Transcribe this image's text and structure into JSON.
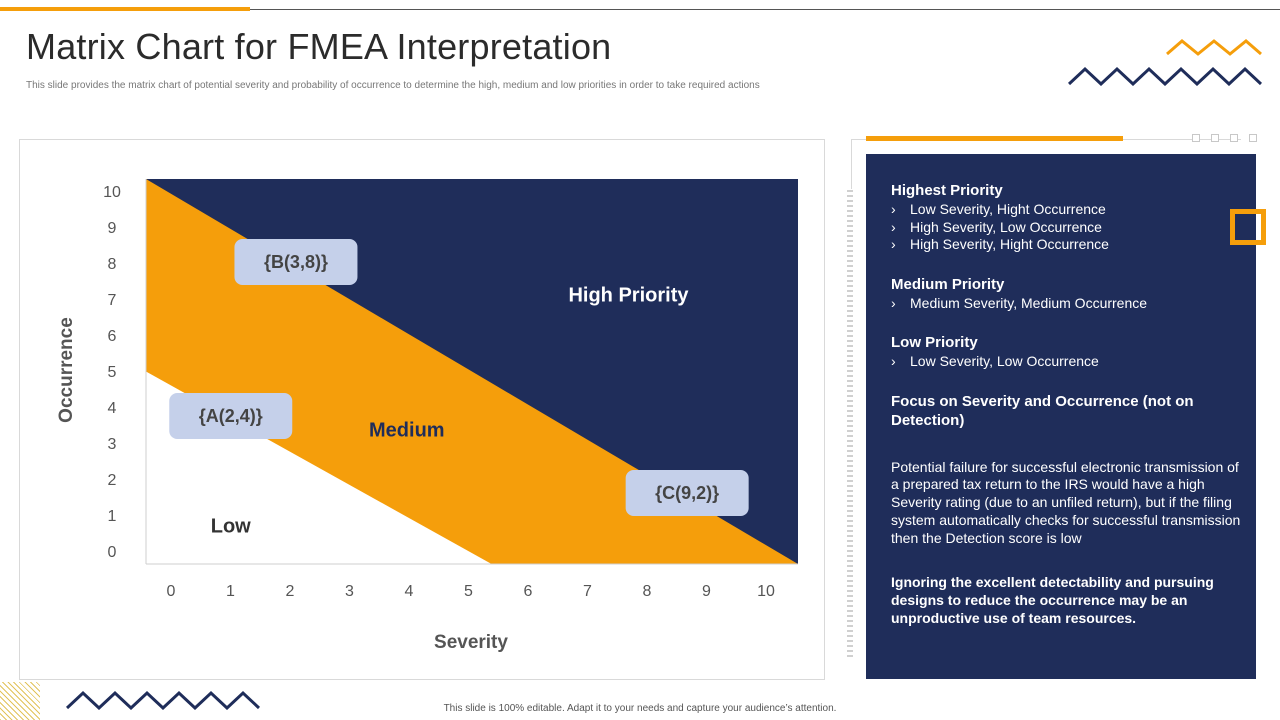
{
  "slide": {
    "title": "Matrix Chart for FMEA Interpretation",
    "subtitle": "This slide provides the matrix chart of potential severity and probability of occurrence to determine the high, medium and low priorities in order to take required actions",
    "footer": "This slide is 100% editable. Adapt it to your needs and capture your audience’s attention."
  },
  "colors": {
    "navy": "#1f2d5a",
    "orange": "#f59e0b",
    "point_box": "#c5d0ea",
    "zigzag_navy": "#1f2d5a",
    "zigzag_orange": "#f59e0b"
  },
  "chart_data": {
    "type": "scatter",
    "title": "",
    "xlabel": "Severity",
    "ylabel": "Occurrence",
    "xlim": [
      0,
      10
    ],
    "ylim": [
      0,
      10
    ],
    "x_ticks": [
      "0",
      "1",
      "2",
      "3",
      "4",
      "5",
      "6",
      "7",
      "8",
      "9",
      "10"
    ],
    "y_ticks": [
      "0",
      "1",
      "2",
      "3",
      "4",
      "5",
      "6",
      "7",
      "8",
      "9",
      "10"
    ],
    "grid": false,
    "regions": [
      {
        "name": "High Priority",
        "color": "#1f2d5a",
        "label_at": [
          7.4,
          7
        ]
      },
      {
        "name": "Medium",
        "color": "#f59e0b",
        "label_at": [
          4,
          3.5
        ]
      },
      {
        "name": "Low",
        "color": "#ffffff",
        "label_at": [
          1.3,
          1
        ]
      }
    ],
    "boundaries": [
      {
        "name": "low-medium",
        "from": [
          0,
          5
        ],
        "to": [
          5.3,
          0
        ]
      },
      {
        "name": "medium-high",
        "from": [
          0,
          10
        ],
        "to": [
          10,
          0
        ]
      }
    ],
    "points": [
      {
        "label": "{B(3,8)}",
        "x": 3,
        "y": 8
      },
      {
        "label": "{A(2,4)}",
        "x": 2,
        "y": 4
      },
      {
        "label": "{C(9,2)}",
        "x": 9,
        "y": 2
      }
    ]
  },
  "side": {
    "sections": [
      {
        "heading": "Highest Priority",
        "items": [
          "Low Severity, Hight Occurrence",
          "High Severity, Low Occurrence",
          "High Severity, Hight Occurrence"
        ]
      },
      {
        "heading": "Medium Priority",
        "items": [
          "Medium Severity, Medium Occurrence"
        ]
      },
      {
        "heading": "Low Priority",
        "items": [
          "Low Severity, Low Occurrence"
        ]
      }
    ],
    "focus_heading": "Focus on Severity and Occurrence (not on Detection)",
    "paragraph": "Potential failure for successful electronic transmission of a prepared tax return to the IRS would have a high Severity rating (due to an unfiled return), but if the filing system automatically checks for successful transmission then the Detection score is low",
    "closing": "Ignoring the excellent detectability and pursuing designs to reduce the occurrence may be an unproductive use of team resources."
  }
}
